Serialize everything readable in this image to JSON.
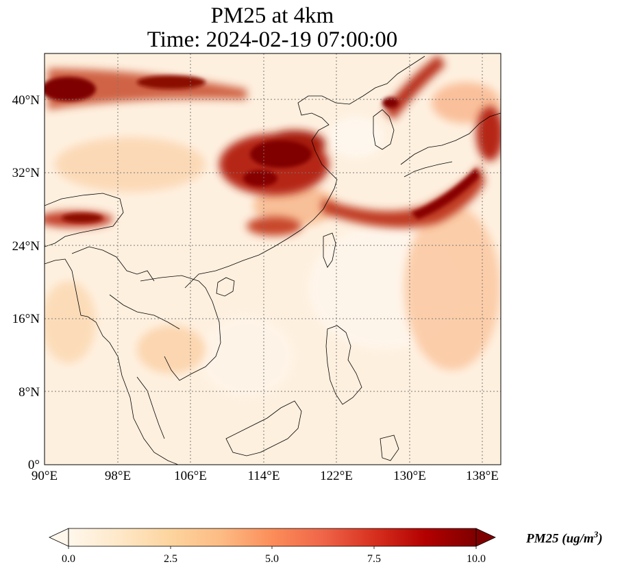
{
  "title": {
    "line1": "PM25 at 4km",
    "line2": "Time: 2024-02-19 07:00:00"
  },
  "map": {
    "variable": "PM25",
    "resolution": "4km",
    "timestamp": "2024-02-19 07:00:00",
    "lon_range": [
      90,
      140
    ],
    "lat_range": [
      0,
      45
    ],
    "x_ticks": [
      {
        "value": 90,
        "label": "90°E"
      },
      {
        "value": 98,
        "label": "98°E"
      },
      {
        "value": 106,
        "label": "106°E"
      },
      {
        "value": 114,
        "label": "114°E"
      },
      {
        "value": 122,
        "label": "122°E"
      },
      {
        "value": 130,
        "label": "130°E"
      },
      {
        "value": 138,
        "label": "138°E"
      }
    ],
    "y_ticks": [
      {
        "value": 0,
        "label": "0°"
      },
      {
        "value": 8,
        "label": "8°N"
      },
      {
        "value": 16,
        "label": "16°N"
      },
      {
        "value": 24,
        "label": "24°N"
      },
      {
        "value": 32,
        "label": "32°N"
      },
      {
        "value": 40,
        "label": "40°N"
      }
    ],
    "gridlines": "dotted",
    "coastlines": true,
    "borders": true
  },
  "colorbar": {
    "colormap": "OrRd",
    "range": [
      0.0,
      10.0
    ],
    "extend": "both",
    "orientation": "horizontal",
    "tick_labels": [
      "0.0",
      "2.5",
      "5.0",
      "7.5",
      "10.0"
    ],
    "label_text": "PM25 (ug/m",
    "label_sup": "3",
    "label_close": ")",
    "colors": [
      "#fff7ec",
      "#fee8c8",
      "#fdd49e",
      "#fdbb84",
      "#fc8d59",
      "#ef6548",
      "#d7301f",
      "#b30000",
      "#7f0000"
    ]
  }
}
